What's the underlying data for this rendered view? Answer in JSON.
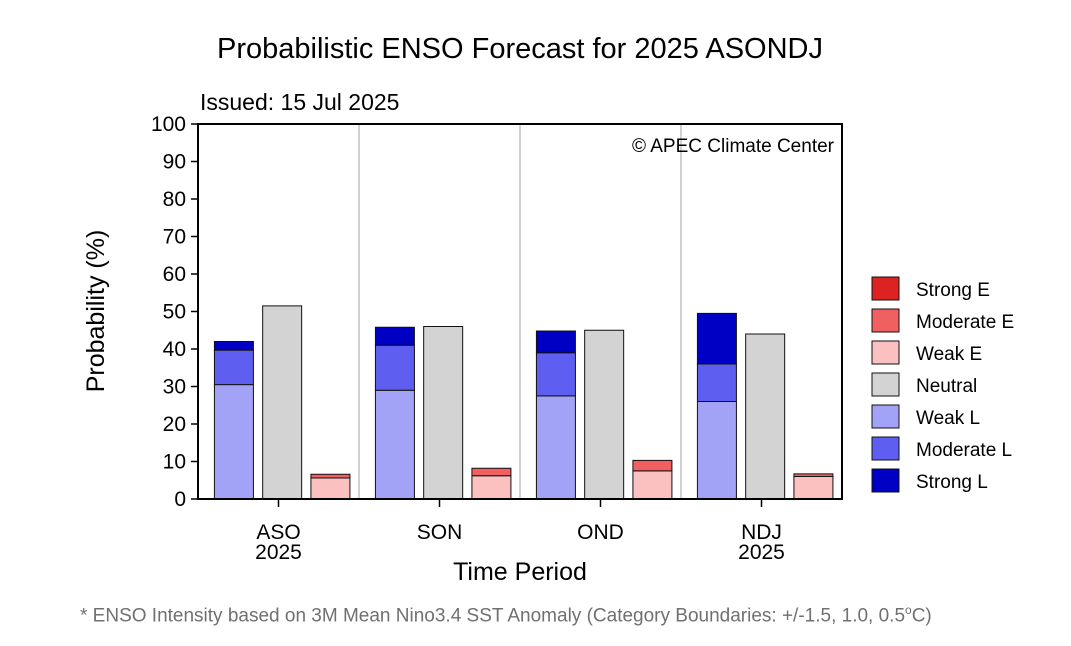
{
  "chart_data": {
    "type": "bar",
    "title": "Probabilistic ENSO Forecast for 2025 ASONDJ",
    "subtitle": "Issued: 15 Jul 2025",
    "credit": "© APEC Climate Center",
    "xlabel": "Time Period",
    "ylabel": "Probability (%)",
    "ylim": [
      0,
      100
    ],
    "yticks": [
      0,
      10,
      20,
      30,
      40,
      50,
      60,
      70,
      80,
      90,
      100
    ],
    "grid": false,
    "legend_position": "right",
    "categories": [
      {
        "line1": "ASO",
        "line2": "2025"
      },
      {
        "line1": "SON",
        "line2": ""
      },
      {
        "line1": "OND",
        "line2": ""
      },
      {
        "line1": "NDJ",
        "line2": "2025"
      }
    ],
    "stacks": {
      "la_nina": [
        "Weak L",
        "Moderate L",
        "Strong L"
      ],
      "neutral": [
        "Neutral"
      ],
      "el_nino": [
        "Weak E",
        "Moderate E",
        "Strong E"
      ]
    },
    "series": [
      {
        "name": "Strong E",
        "color": "#dd2222",
        "values": [
          0,
          0,
          0,
          0
        ]
      },
      {
        "name": "Moderate E",
        "color": "#f06060",
        "values": [
          1,
          2,
          2.8,
          0.7
        ]
      },
      {
        "name": "Weak E",
        "color": "#fbc0c0",
        "values": [
          5.6,
          6.2,
          7.5,
          6
        ]
      },
      {
        "name": "Neutral",
        "color": "#d3d3d3",
        "values": [
          51.5,
          46,
          45,
          44
        ]
      },
      {
        "name": "Weak L",
        "color": "#a2a2f6",
        "values": [
          30.5,
          29,
          27.5,
          26
        ]
      },
      {
        "name": "Moderate L",
        "color": "#5e5ef0",
        "values": [
          9.2,
          12,
          11.5,
          10
        ]
      },
      {
        "name": "Strong L",
        "color": "#0000c4",
        "values": [
          2.3,
          4.8,
          5.8,
          13.5
        ]
      }
    ]
  },
  "footnote": {
    "text": "* ENSO Intensity based on 3M Mean Nino3.4 SST Anomaly (Category Boundaries: +/-1.5, 1.0, 0.5",
    "degree": "o",
    "unit_end": "C)"
  }
}
